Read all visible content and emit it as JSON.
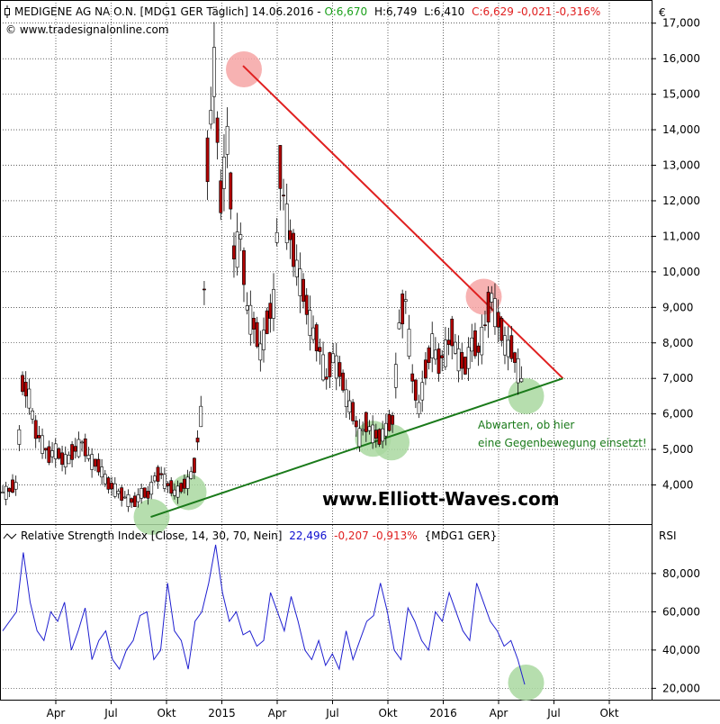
{
  "colors": {
    "up_candle": "#ffffff",
    "down_candle": "#b00000",
    "candle_outline": "#000000",
    "resistance": "#e02020",
    "support": "#1a7a1a",
    "highlight_red": "#f6a5a5",
    "highlight_green": "#a9d8a0",
    "rsi_line": "#1f1fd0",
    "gain": "#1aa01a",
    "loss": "#e02020",
    "rsi_value": "#1010d0"
  },
  "header": {
    "icon": "candle-icon",
    "instrument": "MEDIGENE AG    NA O.N. [MDG1 GER  Täglich] 14.06.2016 -",
    "open": "O:6,670",
    "high": "H:6,749",
    "low": "L:6,410",
    "close_change": "C:6,629  -0,021  -0,316%",
    "copyright": "© www.tradesignalonline.com",
    "currency": "€"
  },
  "rsi_header": {
    "icon": "rsi-line-icon",
    "title": "Relative Strength Index [Close, 14, 30, 70, Nein]",
    "value": "22,496",
    "change": "-0,207  -0,913%",
    "symbol": "{MDG1 GER}",
    "axis_title": "RSI"
  },
  "watermark": "www.Elliott-Waves.com",
  "annotation": [
    "Abwarten, ob hier",
    "eine Gegenbewegung einsetzt!"
  ],
  "chart_data": [
    {
      "type": "candlestick",
      "title": "MEDIGENE AG NA O.N. [MDG1 GER Täglich]",
      "ylabel": "€",
      "ylim": [
        3000,
        17500
      ],
      "y_ticks": [
        4000,
        5000,
        6000,
        7000,
        8000,
        9000,
        10000,
        11000,
        12000,
        13000,
        14000,
        15000,
        16000,
        17000
      ],
      "y_tick_labels": [
        "4,000",
        "5,000",
        "6,000",
        "7,000",
        "8,000",
        "9,000",
        "10,000",
        "11,000",
        "12,000",
        "13,000",
        "14,000",
        "15,000",
        "16,000",
        "17,000"
      ],
      "x_tick_labels": [
        "Apr",
        "Jul",
        "Okt",
        "2015",
        "Apr",
        "Jul",
        "Okt",
        "2016",
        "Apr",
        "Jul",
        "Okt"
      ],
      "grid": true,
      "series": [
        {
          "values": [
            3800,
            3850,
            4000,
            6800,
            6500,
            5500,
            5200,
            4800,
            5000,
            4700,
            4750,
            5000,
            5200,
            4800,
            4600,
            4400,
            4000,
            3900,
            3700,
            3600,
            3500,
            3800,
            3700,
            4200,
            4300,
            4000,
            3800,
            3900,
            4100,
            4500,
            6000,
            13000,
            15800,
            12000,
            13800,
            10500,
            11000,
            9000,
            8500,
            7800,
            8500,
            9200,
            12800,
            11500,
            10500,
            9800,
            9000,
            8300,
            7800,
            7000,
            7600,
            7200,
            6500,
            6000,
            5400,
            5700,
            5500,
            5300,
            5600,
            5800,
            8500,
            9200,
            7000,
            6200,
            7200,
            8000,
            7400,
            7800,
            8200,
            7600,
            7300,
            8000,
            7800,
            8500,
            9300,
            8600,
            8000,
            7800,
            7300,
            6629
          ]
        }
      ],
      "trendlines": [
        {
          "from": [
            "2015-03",
            15800
          ],
          "to": [
            "2016-08",
            7000
          ]
        },
        {
          "from": [
            "2014-10",
            3100
          ],
          "to": [
            "2016-08",
            7000
          ]
        }
      ],
      "highlights": [
        {
          "point": [
            "2015-03",
            15700
          ],
          "color": "red"
        },
        {
          "point": [
            "2016-04",
            9300
          ],
          "color": "red"
        },
        {
          "point": [
            "2014-10",
            3100
          ],
          "color": "green"
        },
        {
          "point": [
            "2014-12",
            3800
          ],
          "color": "green"
        },
        {
          "point": [
            "2015-10",
            5300
          ],
          "color": "green"
        },
        {
          "point": [
            "2015-11",
            5200
          ],
          "color": "green"
        },
        {
          "point": [
            "2016-06",
            6500
          ],
          "color": "green"
        }
      ]
    },
    {
      "type": "line",
      "title": "Relative Strength Index [Close, 14, 30, 70, Nein]",
      "ylabel": "RSI",
      "ylim": [
        15,
        95
      ],
      "y_ticks": [
        20,
        40,
        60,
        80
      ],
      "y_tick_labels": [
        "20,000",
        "40,000",
        "60,000",
        "80,000"
      ],
      "x_tick_labels": [
        "Apr",
        "Jul",
        "Okt",
        "2015",
        "Apr",
        "Jul",
        "Okt",
        "2016",
        "Apr",
        "Jul",
        "Okt"
      ],
      "grid": true,
      "series": [
        {
          "values": [
            50,
            55,
            60,
            91,
            65,
            50,
            45,
            60,
            55,
            65,
            40,
            50,
            62,
            35,
            45,
            50,
            35,
            30,
            40,
            45,
            58,
            60,
            35,
            40,
            75,
            50,
            45,
            30,
            55,
            60,
            75,
            95,
            70,
            55,
            60,
            48,
            50,
            42,
            45,
            70,
            60,
            50,
            68,
            55,
            40,
            35,
            45,
            32,
            38,
            30,
            50,
            35,
            45,
            55,
            58,
            75,
            60,
            40,
            35,
            62,
            55,
            45,
            40,
            60,
            55,
            70,
            60,
            50,
            45,
            75,
            65,
            55,
            50,
            42,
            45,
            35,
            22
          ]
        }
      ],
      "highlights": [
        {
          "point": [
            "2016-06",
            23
          ],
          "color": "green"
        }
      ]
    }
  ]
}
